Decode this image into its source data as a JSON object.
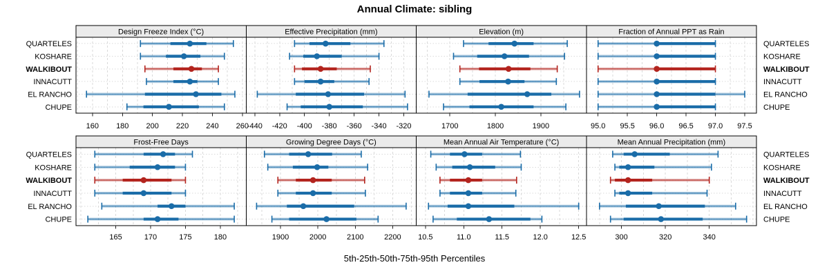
{
  "title": "Annual Climate: sibling",
  "caption": "5th-25th-50th-75th-95th Percentiles",
  "sites": [
    "QUARTELES",
    "KOSHARE",
    "WALKIBOUT",
    "INNACUTT",
    "EL RANCHO",
    "CHUPE"
  ],
  "highlighted_site": "WALKIBOUT",
  "colors": {
    "series_blue": "#1a6ca8",
    "highlight_red": "#b3241e",
    "strip_bg": "#ebebeb",
    "grid": "#d9d9d9",
    "border": "#000000",
    "text": "#000000"
  },
  "chart_data": [
    {
      "type": "interval-dotplot",
      "row": 0,
      "col": 0,
      "title": "Design Freeze Index (°C)",
      "xlim": [
        149,
        262.5
      ],
      "minor_step": 10,
      "ticks": [
        160,
        180,
        200,
        220,
        240,
        260
      ],
      "tick_labels": [
        "160",
        "180",
        "200",
        "220",
        "240",
        "260"
      ],
      "percentile_labels": [
        "p5",
        "p25",
        "p50",
        "p75",
        "p95"
      ],
      "values": [
        [
          192,
          212,
          225,
          236,
          254
        ],
        [
          192,
          209,
          221,
          232,
          248
        ],
        [
          195,
          214,
          226,
          233,
          244
        ],
        [
          196,
          214,
          225,
          230,
          244
        ],
        [
          156,
          195,
          229,
          246,
          255
        ],
        [
          183,
          194,
          211,
          231,
          248
        ]
      ]
    },
    {
      "type": "interval-dotplot",
      "row": 0,
      "col": 1,
      "title": "Effective Precipitation (mm)",
      "xlim": [
        -447,
        -310
      ],
      "minor_step": 10,
      "ticks": [
        -440,
        -420,
        -400,
        -380,
        -360,
        -340,
        -320
      ],
      "tick_labels": [
        "-440",
        "-420",
        "-400",
        "-380",
        "-360",
        "-340",
        "-320"
      ],
      "percentile_labels": [
        "p5",
        "p25",
        "p50",
        "p75",
        "p95"
      ],
      "values": [
        [
          -408,
          -396,
          -383,
          -363,
          -336
        ],
        [
          -412,
          -401,
          -390,
          -370,
          -340
        ],
        [
          -408,
          -402,
          -387,
          -374,
          -347
        ],
        [
          -408,
          -400,
          -387,
          -376,
          -348
        ],
        [
          -438,
          -407,
          -381,
          -352,
          -319
        ],
        [
          -414,
          -403,
          -380,
          -353,
          -317
        ]
      ]
    },
    {
      "type": "interval-dotplot",
      "row": 0,
      "col": 2,
      "title": "Elevation (m)",
      "xlim": [
        1626,
        2000
      ],
      "minor_step": 50,
      "ticks": [
        1700,
        1800,
        1900
      ],
      "tick_labels": [
        "1700",
        "1800",
        "1900"
      ],
      "percentile_labels": [
        "p5",
        "p25",
        "p50",
        "p75",
        "p95"
      ],
      "values": [
        [
          1730,
          1785,
          1842,
          1884,
          1958
        ],
        [
          1708,
          1760,
          1820,
          1874,
          1952
        ],
        [
          1722,
          1764,
          1829,
          1877,
          1936
        ],
        [
          1722,
          1765,
          1828,
          1864,
          1934
        ],
        [
          1654,
          1739,
          1870,
          1923,
          1985
        ],
        [
          1686,
          1743,
          1813,
          1884,
          1955
        ]
      ]
    },
    {
      "type": "interval-dotplot",
      "row": 0,
      "col": 3,
      "title": "Fraction of Annual PPT as Rain",
      "xlim": [
        94.8,
        97.7
      ],
      "minor_step": 0.25,
      "ticks": [
        95.0,
        95.5,
        96.0,
        96.5,
        97.0,
        97.5
      ],
      "tick_labels": [
        "95.0",
        "95.5",
        "96.0",
        "96.5",
        "97.0",
        "97.5"
      ],
      "percentile_labels": [
        "p5",
        "p25",
        "p50",
        "p75",
        "p95"
      ],
      "values": [
        [
          95,
          96,
          96,
          97,
          97
        ],
        [
          95,
          96,
          96,
          97,
          97
        ],
        [
          95,
          96,
          96,
          97,
          97
        ],
        [
          95,
          96,
          96,
          97,
          97
        ],
        [
          95,
          96,
          96,
          97,
          97.5
        ],
        [
          95,
          96,
          96,
          97,
          97
        ]
      ]
    },
    {
      "type": "interval-dotplot",
      "row": 1,
      "col": 0,
      "title": "Frost-Free Days",
      "xlim": [
        159.3,
        183.7
      ],
      "minor_step": 2.5,
      "ticks": [
        165,
        170,
        175,
        180
      ],
      "tick_labels": [
        "165",
        "170",
        "175",
        "180"
      ],
      "percentile_labels": [
        "p5",
        "p25",
        "p50",
        "p75",
        "p95"
      ],
      "values": [
        [
          162,
          169,
          171.8,
          173.5,
          176
        ],
        [
          162,
          167,
          171,
          173.5,
          175
        ],
        [
          162,
          166,
          169,
          173,
          175
        ],
        [
          162,
          166,
          169,
          173,
          175
        ],
        [
          163,
          171,
          173,
          175,
          182
        ],
        [
          161,
          169,
          171,
          174,
          182
        ]
      ]
    },
    {
      "type": "interval-dotplot",
      "row": 1,
      "col": 1,
      "title": "Growing Degree Days (°C)",
      "xlim": [
        1808,
        2263
      ],
      "minor_step": 50,
      "ticks": [
        1900,
        2000,
        2100,
        2200
      ],
      "tick_labels": [
        "1900",
        "2000",
        "2100",
        "2200"
      ],
      "percentile_labels": [
        "p5",
        "p25",
        "p50",
        "p75",
        "p95"
      ],
      "values": [
        [
          1857,
          1923,
          1974,
          2038,
          2116
        ],
        [
          1866,
          1933,
          1998,
          2028,
          2133
        ],
        [
          1893,
          1941,
          1987,
          2037,
          2125
        ],
        [
          1893,
          1941,
          1987,
          2037,
          2127
        ],
        [
          1836,
          1917,
          1961,
          2097,
          2236
        ],
        [
          1877,
          1923,
          2023,
          2103,
          2161
        ]
      ]
    },
    {
      "type": "interval-dotplot",
      "row": 1,
      "col": 2,
      "title": "Mean Annual Air Temperature (°C)",
      "xlim": [
        10.38,
        12.6
      ],
      "minor_step": 0.25,
      "ticks": [
        10.5,
        11.0,
        11.5,
        12.0,
        12.5
      ],
      "tick_labels": [
        "10.5",
        "11.0",
        "11.5",
        "12.0",
        "12.5"
      ],
      "percentile_labels": [
        "p5",
        "p25",
        "p50",
        "p75",
        "p95"
      ],
      "values": [
        [
          10.57,
          10.82,
          11.01,
          11.24,
          11.74
        ],
        [
          10.64,
          10.85,
          11.08,
          11.41,
          11.75
        ],
        [
          10.69,
          10.82,
          11.06,
          11.24,
          11.69
        ],
        [
          10.69,
          10.82,
          11.06,
          11.24,
          11.68
        ],
        [
          10.54,
          10.79,
          11.06,
          11.66,
          12.5
        ],
        [
          10.6,
          10.91,
          11.33,
          11.87,
          12.02
        ]
      ]
    },
    {
      "type": "interval-dotplot",
      "row": 1,
      "col": 3,
      "title": "Mean Annual Precipitation (mm)",
      "xlim": [
        284,
        361.5
      ],
      "minor_step": 10,
      "ticks": [
        300,
        320,
        340
      ],
      "tick_labels": [
        "300",
        "320",
        "340"
      ],
      "percentile_labels": [
        "p5",
        "p25",
        "p50",
        "p75",
        "p95"
      ],
      "values": [
        [
          296,
          301,
          306,
          322,
          344
        ],
        [
          297,
          299,
          303,
          315,
          341
        ],
        [
          295,
          297,
          303,
          314,
          340
        ],
        [
          297,
          299,
          303,
          314,
          339
        ],
        [
          290,
          302,
          317,
          338,
          352
        ],
        [
          295,
          301,
          318,
          337,
          357
        ]
      ]
    }
  ]
}
